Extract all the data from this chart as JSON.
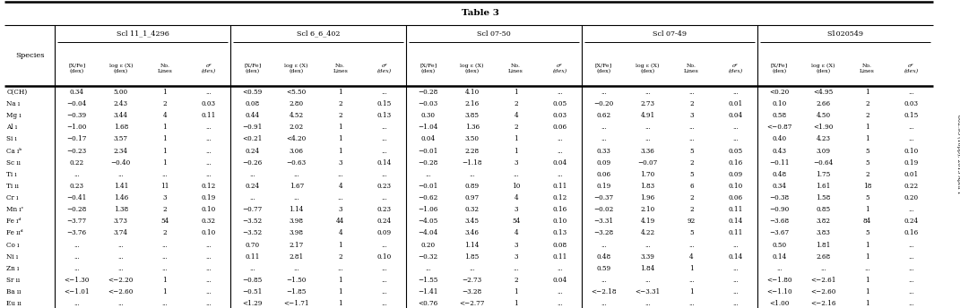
{
  "title": "Table 3",
  "col_groups": [
    {
      "name": "Scl 11_1_4296",
      "span": 4
    },
    {
      "name": "Scl 6_6_402",
      "span": 4
    },
    {
      "name": "Scl 07-50",
      "span": 4
    },
    {
      "name": "Scl 07-49",
      "span": 4
    },
    {
      "name": "S1020549",
      "span": 4
    }
  ],
  "species_col": "Species",
  "rows": [
    [
      "C(CH)",
      "0.34",
      "5.00",
      "1",
      "...",
      "<0.59",
      "<5.50",
      "1",
      "...",
      "−0.28",
      "4.10",
      "1",
      "...",
      "...",
      "...",
      "...",
      "...",
      "<0.20",
      "<4.95",
      "1",
      "..."
    ],
    [
      "Na ı",
      "−0.04",
      "2.43",
      "2",
      "0.03",
      "0.08",
      "2.80",
      "2",
      "0.15",
      "−0.03",
      "2.16",
      "2",
      "0.05",
      "−0.20",
      "2.73",
      "2",
      "0.01",
      "0.10",
      "2.66",
      "2",
      "0.03"
    ],
    [
      "Mg ı",
      "−0.39",
      "3.44",
      "4",
      "0.11",
      "0.44",
      "4.52",
      "2",
      "0.13",
      "0.30",
      "3.85",
      "4",
      "0.03",
      "0.62",
      "4.91",
      "3",
      "0.04",
      "0.58",
      "4.50",
      "2",
      "0.15"
    ],
    [
      "Al ı",
      "−1.00",
      "1.68",
      "1",
      "...",
      "−0.91",
      "2.02",
      "1",
      "...",
      "−1.04",
      "1.36",
      "2",
      "0.06",
      "...",
      "...",
      "...",
      "...",
      "<−0.87",
      "<1.90",
      "1",
      "..."
    ],
    [
      "Si ı",
      "−0.17",
      "3.57",
      "1",
      "...",
      "<0.21",
      "<4.20",
      "1",
      "...",
      "0.04",
      "3.50",
      "1",
      "...",
      "...",
      "...",
      "...",
      "...",
      "0.40",
      "4.23",
      "1",
      "..."
    ],
    [
      "Ca ıᵇ",
      "−0.23",
      "2.34",
      "1",
      "...",
      "0.24",
      "3.06",
      "1",
      "...",
      "−0.01",
      "2.28",
      "1",
      "...",
      "0.33",
      "3.36",
      "5",
      "0.05",
      "0.43",
      "3.09",
      "5",
      "0.10"
    ],
    [
      "Sc ıı",
      "0.22",
      "−0.40",
      "1",
      "...",
      "−0.26",
      "−0.63",
      "3",
      "0.14",
      "−0.28",
      "−1.18",
      "3",
      "0.04",
      "0.09",
      "−0.07",
      "2",
      "0.16",
      "−0.11",
      "−0.64",
      "5",
      "0.19"
    ],
    [
      "Ti ı",
      "...",
      "...",
      "...",
      "...",
      "...",
      "...",
      "...",
      "...",
      "...",
      "...",
      "...",
      "...",
      "0.06",
      "1.70",
      "5",
      "0.09",
      "0.48",
      "1.75",
      "2",
      "0.01"
    ],
    [
      "Ti ıı",
      "0.23",
      "1.41",
      "11",
      "0.12",
      "0.24",
      "1.67",
      "4",
      "0.23",
      "−0.01",
      "0.89",
      "10",
      "0.11",
      "0.19",
      "1.83",
      "6",
      "0.10",
      "0.34",
      "1.61",
      "18",
      "0.22"
    ],
    [
      "Cr ı",
      "−0.41",
      "1.46",
      "3",
      "0.19",
      "...",
      "...",
      "...",
      "...",
      "−0.62",
      "0.97",
      "4",
      "0.12",
      "−0.37",
      "1.96",
      "2",
      "0.06",
      "−0.38",
      "1.58",
      "5",
      "0.20"
    ],
    [
      "Mn ıᶜ",
      "−0.28",
      "1.38",
      "2",
      "0.10",
      "−0.77",
      "1.14",
      "3",
      "0.23",
      "−1.06",
      "0.32",
      "3",
      "0.16",
      "−0.02",
      "2.10",
      "2",
      "0.11",
      "−0.90",
      "0.85",
      "1",
      "..."
    ],
    [
      "Fe ıᵈ",
      "−3.77",
      "3.73",
      "54",
      "0.32",
      "−3.52",
      "3.98",
      "44",
      "0.24",
      "−4.05",
      "3.45",
      "54",
      "0.10",
      "−3.31",
      "4.19",
      "92",
      "0.14",
      "−3.68",
      "3.82",
      "84",
      "0.24"
    ],
    [
      "Fe ııᵈ",
      "−3.76",
      "3.74",
      "2",
      "0.10",
      "−3.52",
      "3.98",
      "4",
      "0.09",
      "−4.04",
      "3.46",
      "4",
      "0.13",
      "−3.28",
      "4.22",
      "5",
      "0.11",
      "−3.67",
      "3.83",
      "5",
      "0.16"
    ],
    [
      "Co ı",
      "...",
      "...",
      "...",
      "...",
      "0.70",
      "2.17",
      "1",
      "...",
      "0.20",
      "1.14",
      "3",
      "0.08",
      "...",
      "...",
      "...",
      "...",
      "0.50",
      "1.81",
      "1",
      "..."
    ],
    [
      "Ni ı",
      "...",
      "...",
      "...",
      "...",
      "0.11",
      "2.81",
      "2",
      "0.10",
      "−0.32",
      "1.85",
      "3",
      "0.11",
      "0.48",
      "3.39",
      "4",
      "0.14",
      "0.14",
      "2.68",
      "1",
      "..."
    ],
    [
      "Zn ı",
      "...",
      "...",
      "...",
      "...",
      "...",
      "...",
      "...",
      "...",
      "...",
      "...",
      "...",
      "...",
      "0.59",
      "1.84",
      "1",
      "...",
      "...",
      "...",
      "...",
      "..."
    ],
    [
      "Sr ıı",
      "<−1.30",
      "<−2.20",
      "1",
      "...",
      "−0.85",
      "−1.50",
      "1",
      "...",
      "−1.55",
      "−2.73",
      "2",
      "0.04",
      "...",
      "...",
      "...",
      "...",
      "<−1.80",
      "<−2.61",
      "1",
      "..."
    ],
    [
      "Ba ıı",
      "<−1.01",
      "<−2.60",
      "1",
      "...",
      "−0.51",
      "−1.85",
      "1",
      "...",
      "−1.41",
      "−3.28",
      "1",
      "...",
      "<−2.18",
      "<−3.31",
      "1",
      "...",
      "<−1.10",
      "<−2.60",
      "1",
      "..."
    ],
    [
      "Eu ıı",
      "...",
      "...",
      "...",
      "...",
      "<1.29",
      "<−1.71",
      "1",
      "...",
      "<0.76",
      "<−2.77",
      "1",
      "...",
      "...",
      "...",
      "...",
      "...",
      "<1.00",
      "<−2.16",
      "1",
      "..."
    ]
  ],
  "journal_text": "802:93 (10pp), 2015 April 1"
}
